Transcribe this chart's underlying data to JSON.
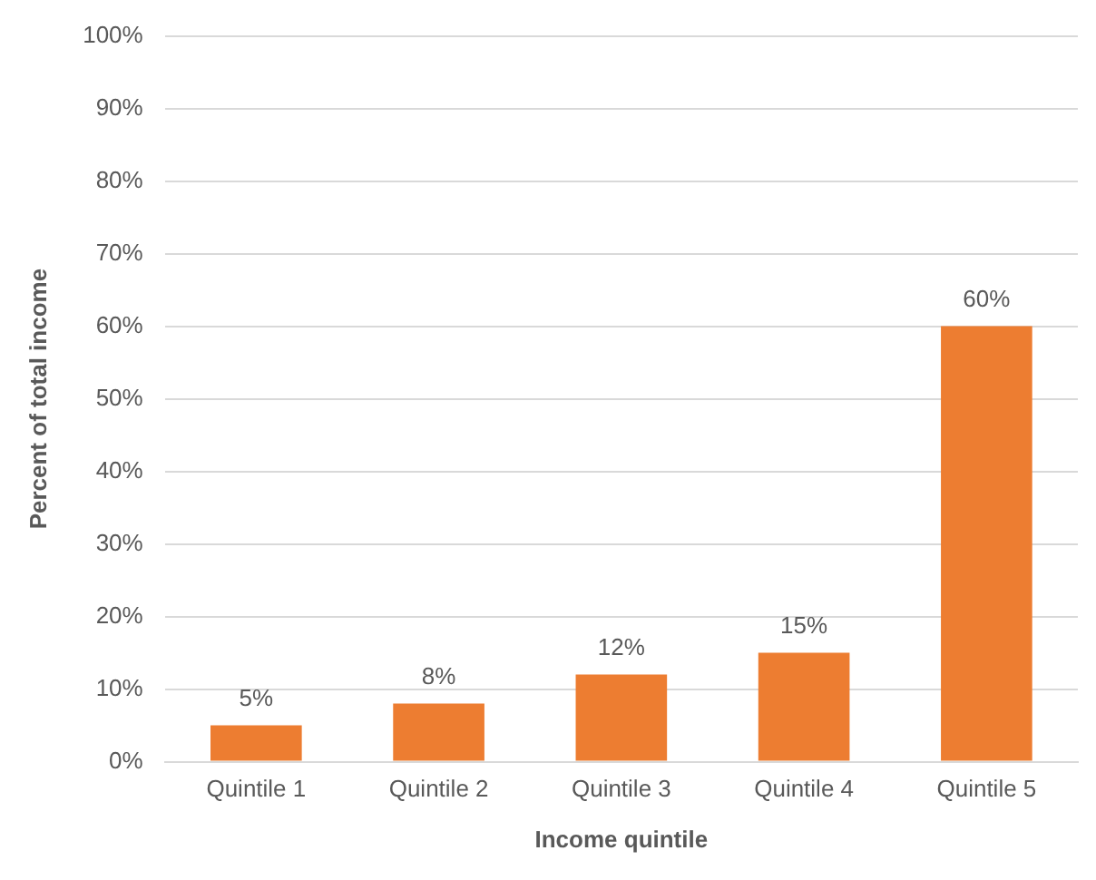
{
  "chart_data": {
    "type": "bar",
    "xlabel": "Income quintile",
    "ylabel": "Percent of total income",
    "categories": [
      "Quintile 1",
      "Quintile 2",
      "Quintile 3",
      "Quintile 4",
      "Quintile 5"
    ],
    "values": [
      5,
      8,
      12,
      15,
      60
    ],
    "value_labels": [
      "5%",
      "8%",
      "12%",
      "15%",
      "60%"
    ],
    "color": "#ed7d31",
    "ylim": [
      0,
      100
    ],
    "yticks": [
      {
        "value": 0,
        "label": "0%"
      },
      {
        "value": 10,
        "label": "10%"
      },
      {
        "value": 20,
        "label": "20%"
      },
      {
        "value": 30,
        "label": "30%"
      },
      {
        "value": 40,
        "label": "40%"
      },
      {
        "value": 50,
        "label": "50%"
      },
      {
        "value": 60,
        "label": "60%"
      },
      {
        "value": 70,
        "label": "70%"
      },
      {
        "value": 80,
        "label": "80%"
      },
      {
        "value": 90,
        "label": "90%"
      },
      {
        "value": 100,
        "label": "100%"
      }
    ],
    "grid": "y",
    "legend": false
  }
}
